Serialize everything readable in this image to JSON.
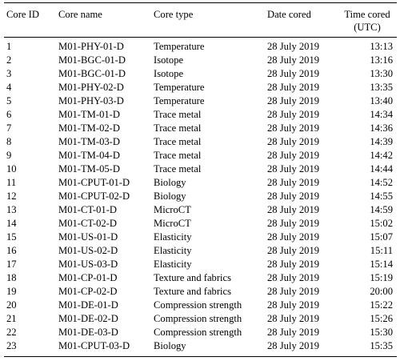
{
  "table": {
    "headers": {
      "id": "Core ID",
      "name": "Core name",
      "type": "Core type",
      "date": "Date cored",
      "time_line1": "Time cored",
      "time_line2": "(UTC)"
    },
    "rows": [
      {
        "id": "1",
        "name": "M01-PHY-01-D",
        "type": "Temperature",
        "date": "28 July 2019",
        "time": "13:13"
      },
      {
        "id": "2",
        "name": "M01-BGC-01-D",
        "type": "Isotope",
        "date": "28 July 2019",
        "time": "13:16"
      },
      {
        "id": "3",
        "name": "M01-BGC-01-D",
        "type": "Isotope",
        "date": "28 July 2019",
        "time": "13:30"
      },
      {
        "id": "4",
        "name": "M01-PHY-02-D",
        "type": "Temperature",
        "date": "28 July 2019",
        "time": "13:35"
      },
      {
        "id": "5",
        "name": "M01-PHY-03-D",
        "type": "Temperature",
        "date": "28 July 2019",
        "time": "13:40"
      },
      {
        "id": "6",
        "name": "M01-TM-01-D",
        "type": "Trace metal",
        "date": "28 July 2019",
        "time": "14:34"
      },
      {
        "id": "7",
        "name": "M01-TM-02-D",
        "type": "Trace metal",
        "date": "28 July 2019",
        "time": "14:36"
      },
      {
        "id": "8",
        "name": "M01-TM-03-D",
        "type": "Trace metal",
        "date": "28 July 2019",
        "time": "14:39"
      },
      {
        "id": "9",
        "name": "M01-TM-04-D",
        "type": "Trace metal",
        "date": "28 July 2019",
        "time": "14:42"
      },
      {
        "id": "10",
        "name": "M01-TM-05-D",
        "type": "Trace metal",
        "date": "28 July 2019",
        "time": "14:44"
      },
      {
        "id": "11",
        "name": "M01-CPUT-01-D",
        "type": "Biology",
        "date": "28 July 2019",
        "time": "14:52"
      },
      {
        "id": "12",
        "name": "M01-CPUT-02-D",
        "type": "Biology",
        "date": "28 July 2019",
        "time": "14:55"
      },
      {
        "id": "13",
        "name": "M01-CT-01-D",
        "type": "MicroCT",
        "date": "28 July 2019",
        "time": "14:59"
      },
      {
        "id": "14",
        "name": "M01-CT-02-D",
        "type": "MicroCT",
        "date": "28 July 2019",
        "time": "15:02"
      },
      {
        "id": "15",
        "name": "M01-US-01-D",
        "type": "Elasticity",
        "date": "28 July 2019",
        "time": "15:07"
      },
      {
        "id": "16",
        "name": "M01-US-02-D",
        "type": "Elasticity",
        "date": "28 July 2019",
        "time": "15:11"
      },
      {
        "id": "17",
        "name": "M01-US-03-D",
        "type": "Elasticity",
        "date": "28 July 2019",
        "time": "15:14"
      },
      {
        "id": "18",
        "name": "M01-CP-01-D",
        "type": "Texture and fabrics",
        "date": "28 July 2019",
        "time": "15:19"
      },
      {
        "id": "19",
        "name": "M01-CP-02-D",
        "type": "Texture and fabrics",
        "date": "28 July 2019",
        "time": "20:00"
      },
      {
        "id": "20",
        "name": "M01-DE-01-D",
        "type": "Compression strength",
        "date": "28 July 2019",
        "time": "15:22"
      },
      {
        "id": "21",
        "name": "M01-DE-02-D",
        "type": "Compression strength",
        "date": "28 July 2019",
        "time": "15:26"
      },
      {
        "id": "22",
        "name": "M01-DE-03-D",
        "type": "Compression strength",
        "date": "28 July 2019",
        "time": "15:30"
      },
      {
        "id": "23",
        "name": "M01-CPUT-03-D",
        "type": "Biology",
        "date": "28 July 2019",
        "time": "15:35"
      }
    ]
  }
}
